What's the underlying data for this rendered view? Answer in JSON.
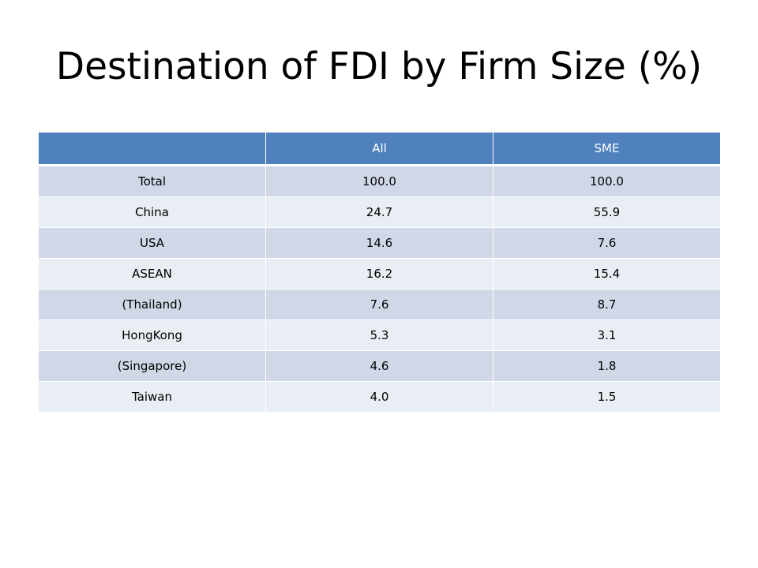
{
  "title": "Destination of FDI by Firm Size (%)",
  "table": {
    "columns": [
      "",
      "All",
      "SME"
    ],
    "rows": [
      {
        "label": "Total",
        "all": "100.0",
        "sme": "100.0"
      },
      {
        "label": "China",
        "all": "24.7",
        "sme": "55.9"
      },
      {
        "label": "USA",
        "all": "14.6",
        "sme": "7.6"
      },
      {
        "label": "ASEAN",
        "all": "16.2",
        "sme": "15.4"
      },
      {
        "label": "(Thailand)",
        "all": "7.6",
        "sme": "8.7"
      },
      {
        "label": "HongKong",
        "all": "5.3",
        "sme": "3.1"
      },
      {
        "label": "(Singapore)",
        "all": "4.6",
        "sme": "1.8"
      },
      {
        "label": "Taiwan",
        "all": "4.0",
        "sme": "1.5"
      }
    ]
  },
  "colors": {
    "header_background": "#4f81bd",
    "row_band_dark": "#d0d8e8",
    "row_band_light": "#e9edf4"
  }
}
